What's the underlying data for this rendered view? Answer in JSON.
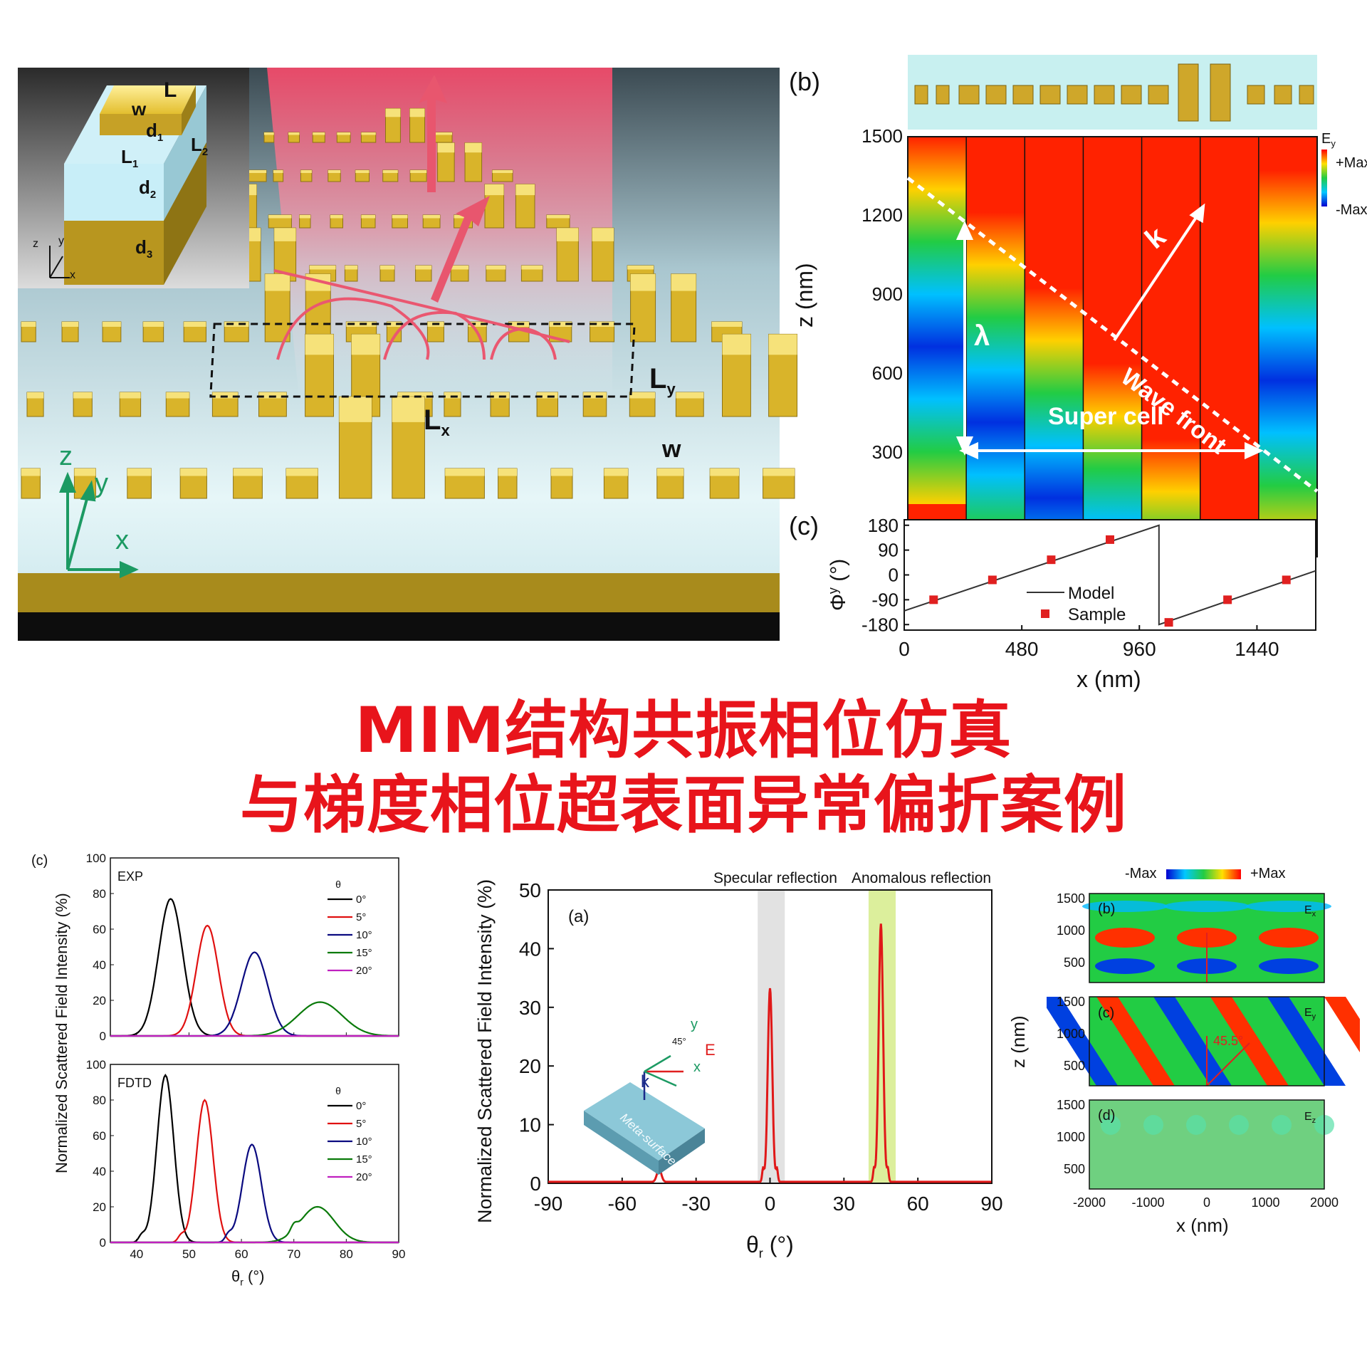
{
  "headline": {
    "line1": "MIM结构共振相位仿真",
    "line2": "与梯度相位超表面异常偏折案例"
  },
  "fig_a": {
    "inset_labels": {
      "L": "L",
      "w": "w",
      "d1": "d",
      "d1_sub": "1",
      "L1": "L",
      "L1_sub": "1",
      "L2": "L",
      "L2_sub": "2",
      "d2": "d",
      "d2_sub": "2",
      "d3": "d",
      "d3_sub": "3",
      "ax_z": "z",
      "ax_y": "y",
      "ax_x": "x"
    },
    "Lx": "L",
    "Lx_sub": "x",
    "Ly": "L",
    "Ly_sub": "y",
    "w": "w",
    "axis_z": "z",
    "axis_y": "y",
    "axis_x": "x",
    "colors": {
      "gold": "#d8b32a",
      "substrate": "#cfeaf0",
      "beam": "#f26a7c"
    }
  },
  "fig_b": {
    "panel": "(b)",
    "ylabel": "z (nm)",
    "yticks": [
      "1500",
      "1200",
      "900",
      "600",
      "300"
    ],
    "legend_title": "E",
    "legend_title_sub": "y",
    "legend_max": "+Max",
    "legend_min": "-Max",
    "label_k": "k",
    "label_lambda": "λ",
    "label_wavefront": "Wave front",
    "label_supercell": "Super cell"
  },
  "fig_c_top": {
    "panel": "(c)",
    "ylabel": "Φ",
    "ylabel_sup": "y",
    "ylabel_unit": "(°)",
    "xlabel": "x (nm)",
    "legend": {
      "model": "Model",
      "sample": "Sample"
    },
    "chart_data": {
      "type": "line",
      "xlim": [
        0,
        1680
      ],
      "ylim": [
        -200,
        200
      ],
      "xticks": [
        0,
        480,
        960,
        1440
      ],
      "yticks": [
        180,
        90,
        0,
        -90,
        -180
      ],
      "series": [
        {
          "name": "Model",
          "x": [
            0,
            1040,
            1040,
            1680
          ],
          "y": [
            -130,
            180,
            -180,
            15
          ]
        },
        {
          "name": "Sample",
          "x": [
            120,
            360,
            600,
            840,
            1080,
            1320,
            1560
          ],
          "y": [
            -90,
            -18,
            55,
            128,
            -172,
            -90,
            -18
          ]
        }
      ]
    }
  },
  "fig_c_left": {
    "panel": "(c)",
    "ylabel": "Normalized Scattered Field Intensity (%)",
    "xlabel": "θ",
    "xlabel_sub": "r",
    "xlabel_unit": "(°)",
    "legend_title": "θ",
    "legend_title_sub": "i",
    "chart_data": [
      {
        "type": "line",
        "label": "EXP",
        "xlim": [
          35,
          90
        ],
        "ylim": [
          0,
          100
        ],
        "xticks": [
          40,
          50,
          60,
          70,
          80,
          90
        ],
        "yticks": [
          0,
          20,
          40,
          60,
          80,
          100
        ],
        "series": [
          {
            "name": "0°",
            "color": "#000000",
            "peak_x": 46.5,
            "peak_y": 77,
            "width": 2.3
          },
          {
            "name": "5°",
            "color": "#e01010",
            "peak_x": 53.5,
            "peak_y": 62,
            "width": 2.1
          },
          {
            "name": "10°",
            "color": "#0a0a80",
            "peak_x": 62.5,
            "peak_y": 47,
            "width": 2.5
          },
          {
            "name": "15°",
            "color": "#0a7a0a",
            "peak_x": 75,
            "peak_y": 19,
            "width": 4.2
          },
          {
            "name": "20°",
            "color": "#c020c0",
            "peak_x": 0,
            "peak_y": 0,
            "width": 1
          }
        ]
      },
      {
        "type": "line",
        "label": "FDTD",
        "xlim": [
          35,
          90
        ],
        "ylim": [
          0,
          100
        ],
        "xticks": [
          40,
          50,
          60,
          70,
          80,
          90
        ],
        "yticks": [
          0,
          20,
          40,
          60,
          80,
          100
        ],
        "series": [
          {
            "name": "0°",
            "color": "#000000",
            "peak_x": 45.5,
            "peak_y": 94,
            "width": 1.6
          },
          {
            "name": "5°",
            "color": "#e01010",
            "peak_x": 53,
            "peak_y": 80,
            "width": 1.6
          },
          {
            "name": "10°",
            "color": "#0a0a80",
            "peak_x": 62,
            "peak_y": 55,
            "width": 1.8
          },
          {
            "name": "15°",
            "color": "#0a7a0a",
            "peak_x": 74.5,
            "peak_y": 20,
            "width": 3.2
          },
          {
            "name": "20°",
            "color": "#c020c0",
            "peak_x": 0,
            "peak_y": 0,
            "width": 1
          }
        ]
      }
    ]
  },
  "fig_bottom_a": {
    "panel": "(a)",
    "ylabel": "Normalized Scattered Field Intensity (%)",
    "xlabel": "θ",
    "xlabel_sub": "r",
    "xlabel_unit": "(°)",
    "label_specular": "Specular reflection",
    "label_anomalous": "Anomalous reflection",
    "inset": {
      "y": "y",
      "angle": "45°",
      "E": "E",
      "x": "x",
      "k": "k",
      "surface": "Meta-surface"
    },
    "chart_data": {
      "type": "line",
      "xlim": [
        -90,
        90
      ],
      "ylim": [
        0,
        50
      ],
      "xticks": [
        -90,
        -60,
        -30,
        0,
        30,
        60,
        90
      ],
      "yticks": [
        0,
        10,
        20,
        30,
        40,
        50
      ],
      "series": [
        {
          "name": "",
          "peaks": [
            [
              -45,
              2.2
            ],
            [
              0,
              33
            ],
            [
              45,
              44
            ]
          ]
        }
      ],
      "bands": [
        [
          -5,
          6
        ],
        [
          40,
          51
        ]
      ]
    }
  },
  "fig_bottom_right": {
    "legend_min": "-Max",
    "legend_max": "+Max",
    "ylabel": "z (nm)",
    "xlabel": "x (nm)",
    "xticks": [
      "-2000",
      "-1000",
      "0",
      "1000",
      "2000"
    ],
    "yticks": [
      "1500",
      "1000",
      "500"
    ],
    "panels": [
      {
        "tag": "(b)",
        "field": "E",
        "field_sub": "x"
      },
      {
        "tag": "(c)",
        "field": "E",
        "field_sub": "y",
        "angle": "45.5°"
      },
      {
        "tag": "(d)",
        "field": "E",
        "field_sub": "z"
      }
    ]
  }
}
